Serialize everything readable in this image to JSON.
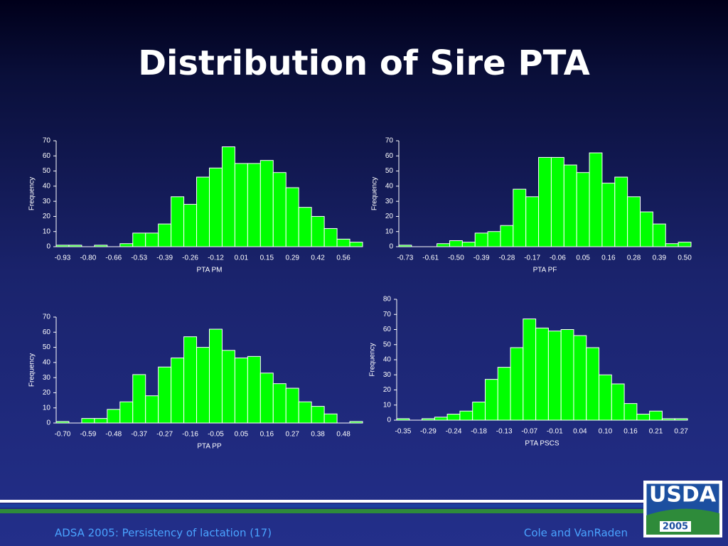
{
  "title": "Distribution of Sire PTA",
  "footer": {
    "left": "ADSA 2005: Persistency of lactation (17)",
    "right": "Cole and VanRaden"
  },
  "logo": {
    "text": "USDA",
    "year": "2005"
  },
  "chart_data": [
    {
      "type": "bar",
      "xlabel": "PTA PM",
      "ylabel": "Frequency",
      "color": "#00ff00",
      "categories": [
        "-0.93",
        null,
        "-0.80",
        null,
        "-0.66",
        null,
        "-0.53",
        null,
        "-0.39",
        null,
        "-0.26",
        null,
        "-0.12",
        null,
        "0.01",
        null,
        "0.15",
        null,
        "0.29",
        null,
        "0.42",
        null,
        "0.56",
        null
      ],
      "values": [
        1,
        1,
        0,
        1,
        0,
        2,
        9,
        9,
        15,
        33,
        28,
        46,
        52,
        66,
        55,
        55,
        57,
        49,
        39,
        26,
        20,
        12,
        5,
        3
      ],
      "ylim": [
        0,
        70
      ],
      "yticks": [
        0,
        10,
        20,
        30,
        40,
        50,
        60,
        70
      ]
    },
    {
      "type": "bar",
      "xlabel": "PTA PF",
      "ylabel": "Frequency",
      "color": "#00ff00",
      "categories": [
        "-0.73",
        null,
        "-0.61",
        null,
        "-0.50",
        null,
        "-0.39",
        null,
        "-0.28",
        null,
        "-0.17",
        null,
        "-0.06",
        null,
        "0.05",
        null,
        "0.16",
        null,
        "0.28",
        null,
        "0.39",
        null,
        "0.50"
      ],
      "values": [
        1,
        0,
        0,
        2,
        4,
        3,
        9,
        10,
        14,
        38,
        33,
        59,
        59,
        54,
        49,
        62,
        42,
        46,
        33,
        23,
        15,
        2,
        3
      ],
      "ylim": [
        0,
        70
      ],
      "yticks": [
        0,
        10,
        20,
        30,
        40,
        50,
        60,
        70
      ]
    },
    {
      "type": "bar",
      "xlabel": "PTA PP",
      "ylabel": "Frequency",
      "color": "#00ff00",
      "categories": [
        "-0.70",
        null,
        "-0.59",
        null,
        "-0.48",
        null,
        "-0.37",
        null,
        "-0.27",
        null,
        "-0.16",
        null,
        "-0.05",
        null,
        "0.05",
        null,
        "0.16",
        null,
        "0.27",
        null,
        "0.38",
        null,
        "0.48",
        null
      ],
      "values": [
        1,
        0,
        3,
        3,
        9,
        14,
        32,
        18,
        37,
        43,
        57,
        50,
        62,
        48,
        43,
        44,
        33,
        26,
        23,
        14,
        11,
        6,
        0,
        1
      ],
      "ylim": [
        0,
        70
      ],
      "yticks": [
        0,
        10,
        20,
        30,
        40,
        50,
        60,
        70
      ]
    },
    {
      "type": "bar",
      "xlabel": "PTA PSCS",
      "ylabel": "Frequency",
      "color": "#00ff00",
      "categories": [
        "-0.35",
        null,
        "-0.29",
        null,
        "-0.24",
        null,
        "-0.18",
        null,
        "-0.13",
        null,
        "-0.07",
        null,
        "-0.01",
        null,
        "0.04",
        null,
        "0.10",
        null,
        "0.16",
        null,
        "0.21",
        null,
        "0.27"
      ],
      "values": [
        1,
        0,
        1,
        2,
        4,
        6,
        12,
        27,
        35,
        48,
        67,
        61,
        59,
        60,
        56,
        48,
        30,
        24,
        11,
        4,
        6,
        1,
        1
      ],
      "ylim": [
        0,
        80
      ],
      "yticks": [
        0,
        10,
        20,
        30,
        40,
        50,
        60,
        70,
        80
      ]
    }
  ]
}
